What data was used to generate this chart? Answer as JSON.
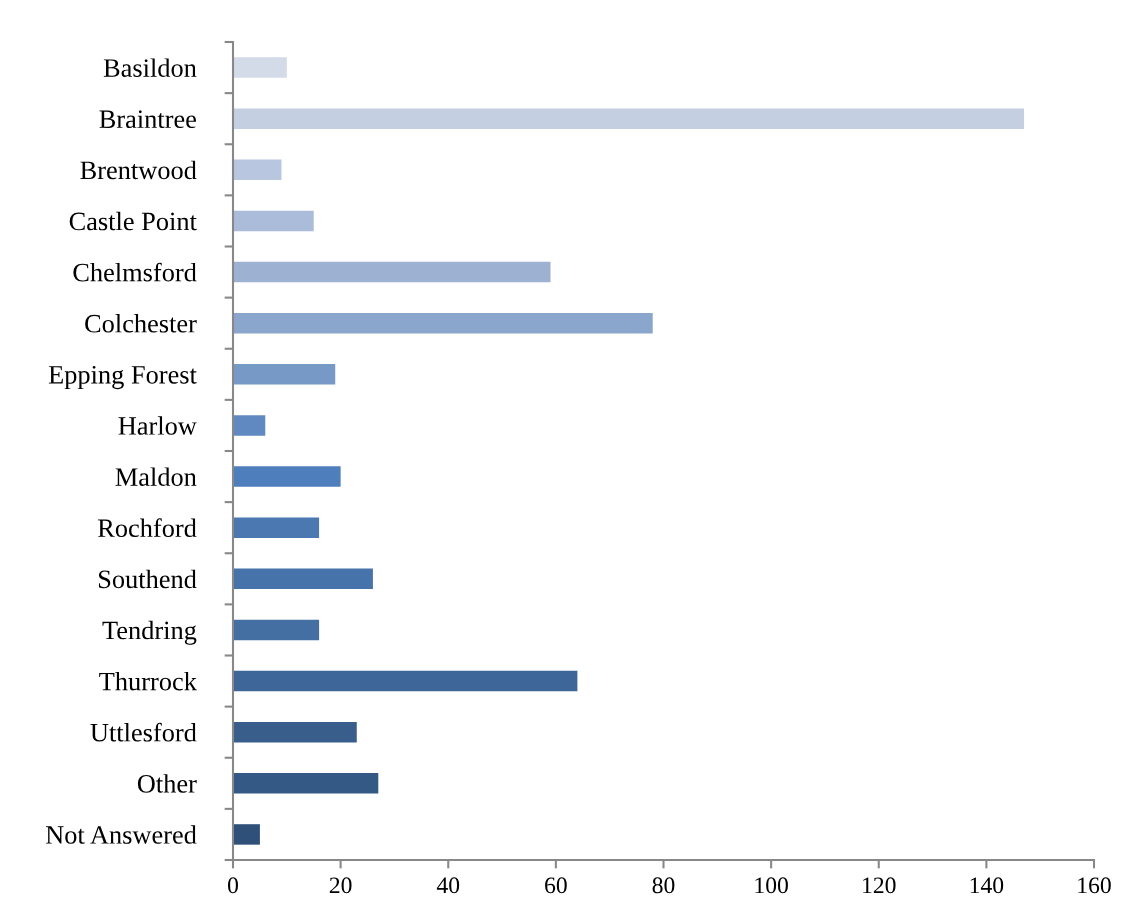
{
  "chart_data": {
    "type": "bar",
    "orientation": "horizontal",
    "categories": [
      "Basildon",
      "Braintree",
      "Brentwood",
      "Castle Point",
      "Chelmsford",
      "Colchester",
      "Epping Forest",
      "Harlow",
      "Maldon",
      "Rochford",
      "Southend",
      "Tendring",
      "Thurrock",
      "Uttlesford",
      "Other",
      "Not Answered"
    ],
    "values": [
      10,
      147,
      9,
      15,
      59,
      78,
      19,
      6,
      20,
      16,
      26,
      16,
      64,
      23,
      27,
      5
    ],
    "colors": [
      "#d3dae8",
      "#c4d0e2",
      "#b8c6df",
      "#abbcda",
      "#9db1d2",
      "#8ba6cc",
      "#7799c6",
      "#6189c1",
      "#4e7fbc",
      "#4b78b0",
      "#4673a9",
      "#446fa3",
      "#3e6698",
      "#3a5e8c",
      "#345985",
      "#2f5078"
    ],
    "xlim": [
      0,
      160
    ],
    "xticks": [
      0,
      20,
      40,
      60,
      80,
      100,
      120,
      140,
      160
    ],
    "grid": false,
    "legend": false
  }
}
